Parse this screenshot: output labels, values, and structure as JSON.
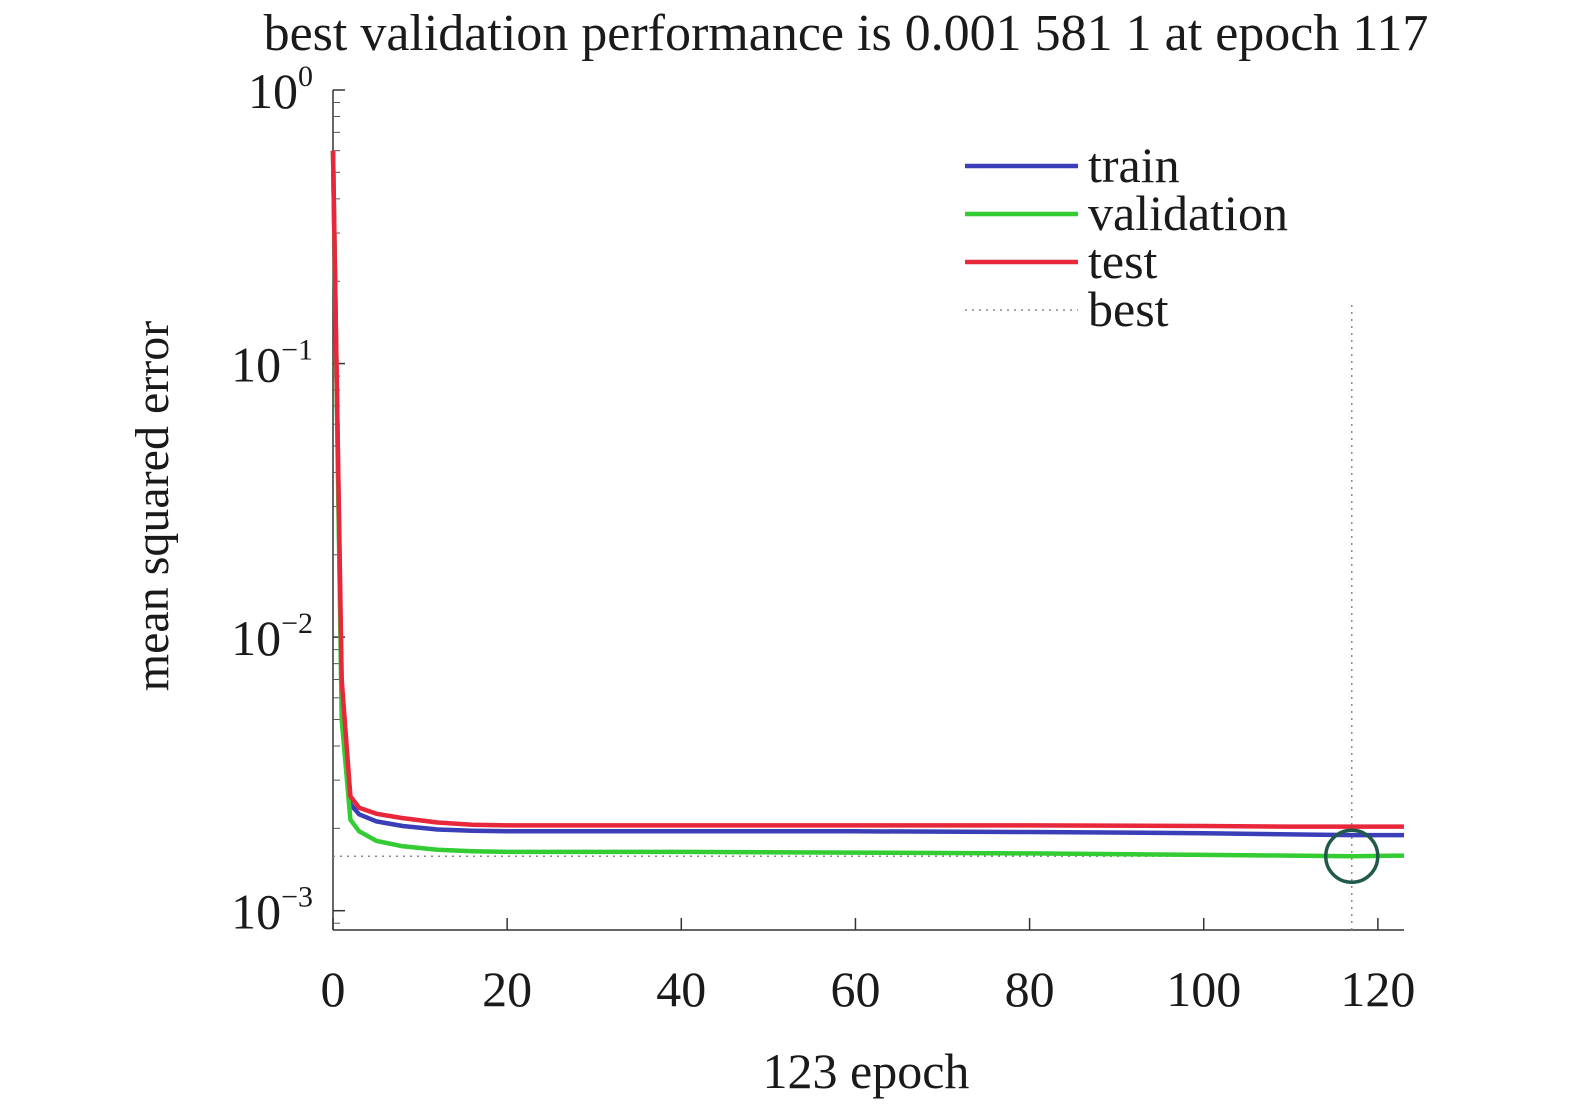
{
  "chart_data": {
    "type": "line",
    "title": "best validation performance is 0.001 581 1 at epoch 117",
    "xlabel": "123 epoch",
    "ylabel": "mean squared error",
    "xlim": [
      0,
      123
    ],
    "ylim": [
      0.00085,
      1.0
    ],
    "yscale": "log",
    "x_ticks": [
      0,
      20,
      40,
      60,
      80,
      100,
      120
    ],
    "x_tick_labels": [
      "0",
      "20",
      "40",
      "60",
      "80",
      "100",
      "120"
    ],
    "y_ticks": [
      {
        "value": 1.0,
        "base": "10",
        "exp": "0"
      },
      {
        "value": 0.1,
        "base": "10",
        "exp": "−1"
      },
      {
        "value": 0.01,
        "base": "10",
        "exp": "−2"
      },
      {
        "value": 0.001,
        "base": "10",
        "exp": "−3"
      }
    ],
    "legend_position": "top-right",
    "series": [
      {
        "name": "train",
        "color": "#3a3fb8",
        "x": [
          0,
          1,
          2,
          3,
          5,
          8,
          12,
          16,
          20,
          30,
          40,
          60,
          80,
          100,
          110,
          117,
          123
        ],
        "y": [
          0.6,
          0.006,
          0.00245,
          0.00225,
          0.00212,
          0.00204,
          0.00198,
          0.00196,
          0.00195,
          0.00195,
          0.00195,
          0.00195,
          0.00194,
          0.00192,
          0.0019,
          0.00189,
          0.00189
        ]
      },
      {
        "name": "validation",
        "color": "#33cc33",
        "x": [
          0,
          1,
          2,
          3,
          5,
          8,
          12,
          16,
          20,
          30,
          40,
          60,
          80,
          100,
          110,
          117,
          123
        ],
        "y": [
          0.6,
          0.005,
          0.00215,
          0.00195,
          0.0018,
          0.00172,
          0.00167,
          0.00165,
          0.00164,
          0.00164,
          0.00164,
          0.00163,
          0.00162,
          0.0016,
          0.00159,
          0.0015811,
          0.00159
        ]
      },
      {
        "name": "test",
        "color": "#e8283a",
        "x": [
          0,
          1,
          2,
          3,
          5,
          8,
          12,
          16,
          20,
          30,
          40,
          60,
          80,
          100,
          110,
          117,
          123
        ],
        "y": [
          0.6,
          0.007,
          0.00262,
          0.00238,
          0.00226,
          0.00218,
          0.0021,
          0.00206,
          0.00205,
          0.00205,
          0.00205,
          0.00205,
          0.00205,
          0.00204,
          0.00203,
          0.00203,
          0.00203
        ]
      },
      {
        "name": "best",
        "color": "#8a8a8a",
        "style": "dotted"
      }
    ],
    "best": {
      "epoch": 117,
      "value": 0.0015811,
      "marker": "circle",
      "marker_color": "#1f5a4a"
    }
  }
}
